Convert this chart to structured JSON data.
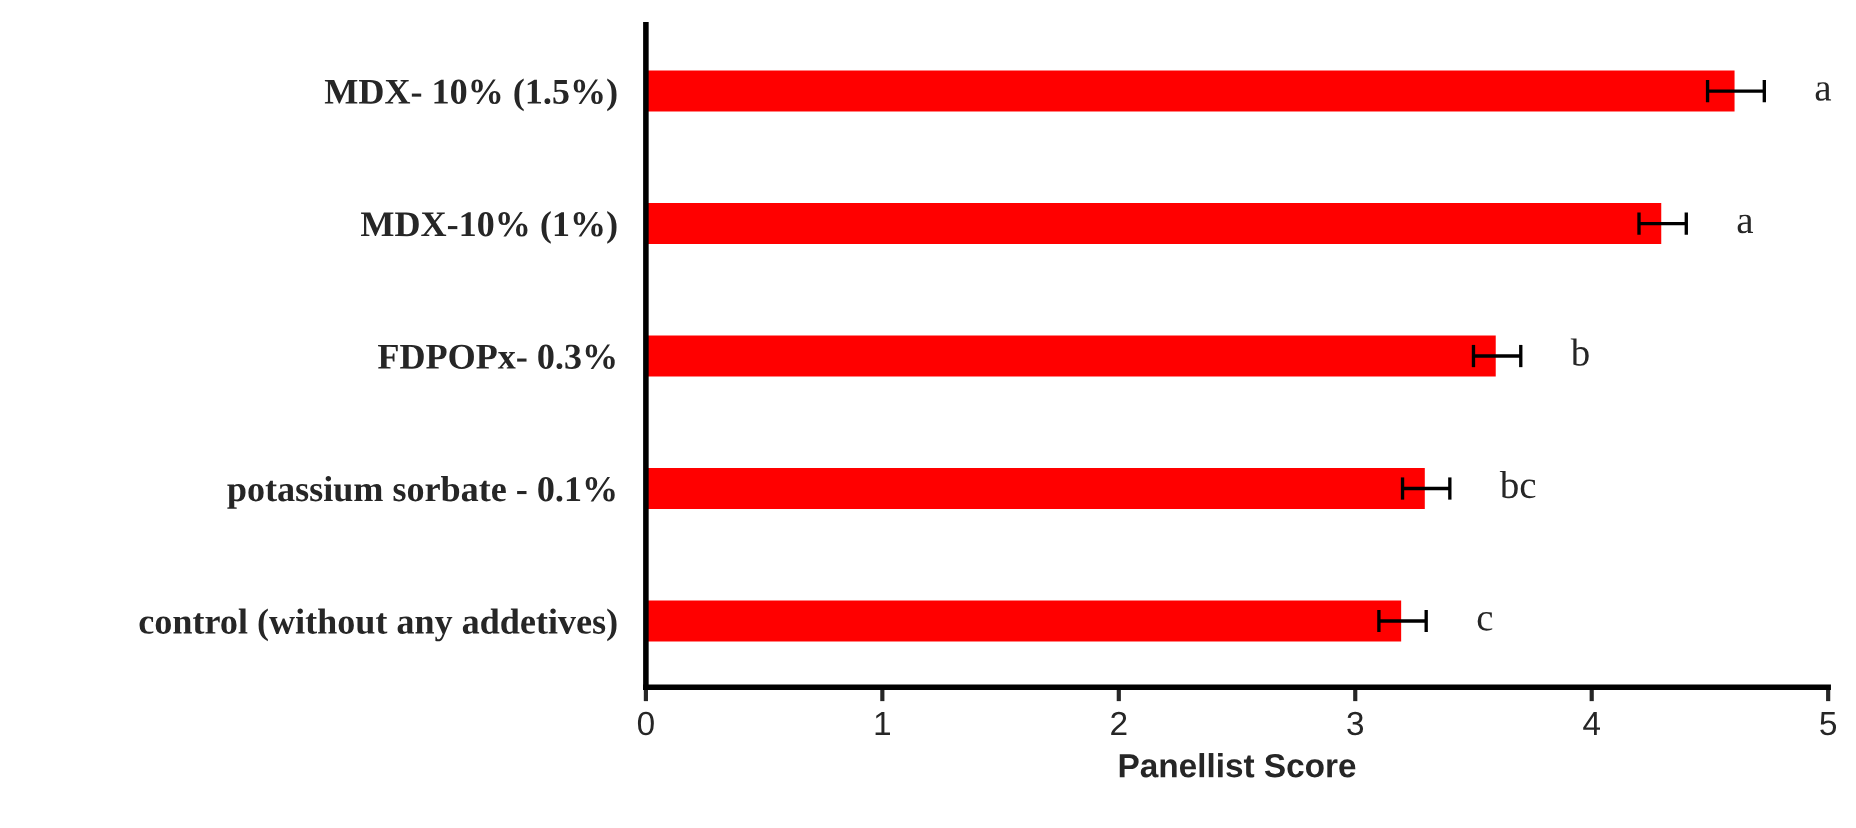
{
  "chart_data": {
    "type": "bar",
    "orientation": "horizontal",
    "xlabel": "Panellist Score",
    "categories": [
      "MDX- 10% (1.5%)",
      "MDX-10% (1%)",
      "FDPOPx- 0.3%",
      "potassium sorbate - 0.1%",
      "control (without any addetives)"
    ],
    "values": [
      4.61,
      4.3,
      3.6,
      3.3,
      3.2
    ],
    "errors": [
      0.12,
      0.1,
      0.1,
      0.1,
      0.1
    ],
    "color": "#ff0000",
    "xlim": [
      0,
      5
    ],
    "xticks": [
      0,
      1,
      2,
      3,
      4,
      5
    ],
    "grid": false,
    "annotations": [
      "a",
      "a",
      "b",
      "bc",
      "c"
    ]
  }
}
